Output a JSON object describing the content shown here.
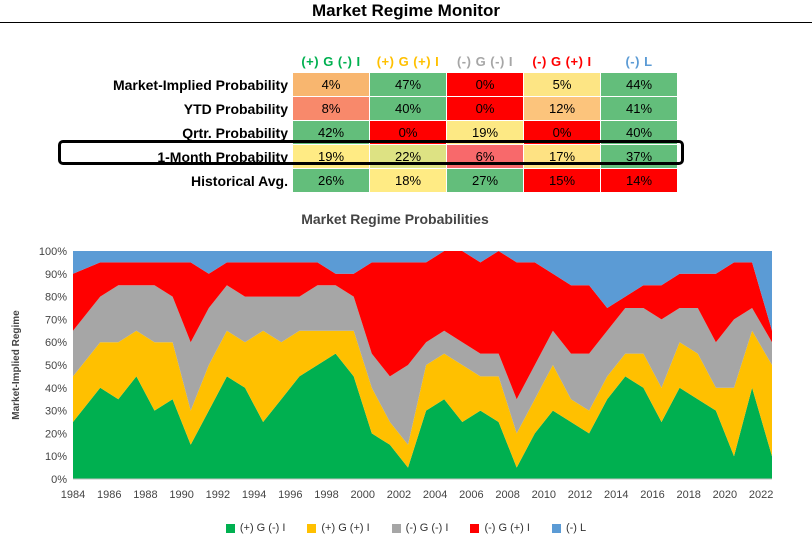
{
  "page": {
    "title": "Market Regime Monitor"
  },
  "regimes": [
    {
      "label": "(+) G (-) I",
      "color": "#00b050"
    },
    {
      "label": "(+) G (+) I",
      "color": "#ffc000"
    },
    {
      "label": "(-) G (-) I",
      "color": "#a6a6a6"
    },
    {
      "label": "(-) G (+) I",
      "color": "#ff0000"
    },
    {
      "label": "(-) L",
      "color": "#5b9bd5"
    }
  ],
  "table": {
    "rows": [
      {
        "label": "Market-Implied Probability",
        "cells": [
          {
            "value": "4%",
            "bg": "#f8b66f"
          },
          {
            "value": "47%",
            "bg": "#63be7b"
          },
          {
            "value": "0%",
            "bg": "#ff0000"
          },
          {
            "value": "5%",
            "bg": "#fde584"
          },
          {
            "value": "44%",
            "bg": "#63be7b"
          }
        ]
      },
      {
        "label": "YTD Probability",
        "cells": [
          {
            "value": "8%",
            "bg": "#f8896b"
          },
          {
            "value": "40%",
            "bg": "#63be7b"
          },
          {
            "value": "0%",
            "bg": "#ff0000"
          },
          {
            "value": "12%",
            "bg": "#fcc47c"
          },
          {
            "value": "41%",
            "bg": "#63be7b"
          }
        ]
      },
      {
        "label": "Qrtr. Probability",
        "cells": [
          {
            "value": "42%",
            "bg": "#63be7b"
          },
          {
            "value": "0%",
            "bg": "#ff0000"
          },
          {
            "value": "19%",
            "bg": "#fde984"
          },
          {
            "value": "0%",
            "bg": "#ff0000"
          },
          {
            "value": "40%",
            "bg": "#63be7b"
          }
        ]
      },
      {
        "label": "1-Month Probability",
        "cells": [
          {
            "value": "19%",
            "bg": "#ffeb84"
          },
          {
            "value": "22%",
            "bg": "#dde283"
          },
          {
            "value": "6%",
            "bg": "#f8696b"
          },
          {
            "value": "17%",
            "bg": "#fee283"
          },
          {
            "value": "37%",
            "bg": "#63be7b"
          }
        ]
      },
      {
        "label": "Historical Avg.",
        "cells": [
          {
            "value": "26%",
            "bg": "#63be7b"
          },
          {
            "value": "18%",
            "bg": "#ffeb84"
          },
          {
            "value": "27%",
            "bg": "#63be7b"
          },
          {
            "value": "15%",
            "bg": "#ff0000"
          },
          {
            "value": "14%",
            "bg": "#ff0000"
          }
        ]
      }
    ]
  },
  "chart_data": {
    "type": "area",
    "stacked": true,
    "normalized": true,
    "title": "Market Regime Probabilities",
    "xlabel": "",
    "ylabel": "Market-Implied Regime",
    "ylim": [
      0,
      100
    ],
    "yticks": [
      "0%",
      "10%",
      "20%",
      "30%",
      "40%",
      "50%",
      "60%",
      "70%",
      "80%",
      "90%",
      "100%"
    ],
    "xticks": [
      "1984",
      "1986",
      "1988",
      "1990",
      "1992",
      "1994",
      "1996",
      "1998",
      "2000",
      "2002",
      "2004",
      "2006",
      "2008",
      "2010",
      "2012",
      "2014",
      "2016",
      "2018",
      "2020",
      "2022"
    ],
    "grid": false,
    "legend": "bottom",
    "x": [
      1984.5,
      1985.5,
      1986.5,
      1987.5,
      1988.5,
      1989.5,
      1990.5,
      1991.5,
      1992.5,
      1993.5,
      1994.5,
      1995.5,
      1996.5,
      1997.5,
      1998.5,
      1999.5,
      2000.5,
      2001.5,
      2002.5,
      2003.5,
      2004.5,
      2005.5,
      2006.5,
      2007.5,
      2008.5,
      2009.5,
      2010.5,
      2011.5,
      2012.5,
      2013.5,
      2014.5,
      2015.5,
      2016.5,
      2017.5,
      2018.5,
      2019.5,
      2020.5,
      2021.5,
      2022.1
    ],
    "series": [
      {
        "name": "(+) G (-) I",
        "values": [
          25,
          40,
          35,
          45,
          30,
          35,
          15,
          30,
          45,
          40,
          25,
          35,
          45,
          50,
          55,
          45,
          20,
          15,
          5,
          30,
          35,
          25,
          30,
          25,
          5,
          20,
          30,
          25,
          20,
          35,
          45,
          40,
          25,
          40,
          35,
          30,
          10,
          40,
          10
        ]
      },
      {
        "name": "(+) G (+) I",
        "values": [
          20,
          20,
          25,
          20,
          30,
          25,
          15,
          20,
          20,
          20,
          40,
          25,
          20,
          15,
          10,
          20,
          20,
          10,
          10,
          20,
          20,
          25,
          15,
          20,
          15,
          15,
          20,
          10,
          10,
          10,
          10,
          15,
          15,
          20,
          20,
          10,
          30,
          25,
          40
        ]
      },
      {
        "name": "(-) G (-) I",
        "values": [
          20,
          20,
          25,
          20,
          25,
          20,
          30,
          25,
          20,
          20,
          15,
          20,
          15,
          20,
          20,
          15,
          15,
          20,
          35,
          10,
          10,
          10,
          10,
          10,
          15,
          15,
          15,
          20,
          25,
          20,
          20,
          20,
          30,
          15,
          20,
          20,
          30,
          10,
          10
        ]
      },
      {
        "name": "(-) G (+) I",
        "values": [
          25,
          15,
          10,
          10,
          10,
          15,
          35,
          15,
          10,
          15,
          15,
          15,
          15,
          10,
          5,
          10,
          40,
          50,
          45,
          35,
          35,
          40,
          40,
          45,
          60,
          45,
          25,
          30,
          30,
          10,
          5,
          10,
          15,
          15,
          15,
          30,
          25,
          20,
          5
        ]
      },
      {
        "name": "(-) L",
        "values": [
          10,
          5,
          5,
          5,
          5,
          5,
          5,
          10,
          5,
          5,
          5,
          5,
          5,
          5,
          10,
          10,
          5,
          5,
          5,
          5,
          0,
          0,
          5,
          0,
          5,
          5,
          10,
          15,
          15,
          25,
          20,
          15,
          15,
          10,
          10,
          10,
          5,
          5,
          35
        ]
      }
    ]
  }
}
